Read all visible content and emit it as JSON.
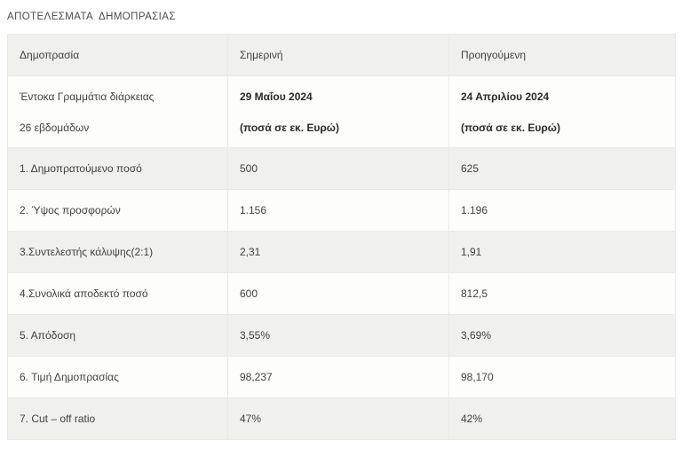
{
  "page": {
    "title": "ΑΠΟΤΕΛΕΣΜΑΤΑ  ΔΗΜΟΠΡΑΣΙΑΣ"
  },
  "table": {
    "columns": [
      "Δημοπρασία",
      "Σημερινή",
      "Προηγούμενη"
    ],
    "instrument_row": {
      "label_line1": "Έντοκα Γραμμάτια διάρκειας",
      "label_line2": "26 εβδομάδων",
      "current_line1": "29 Μαΐου 2024",
      "current_line2": "(ποσά σε εκ. Ευρώ)",
      "previous_line1": "24 Απριλίου 2024",
      "previous_line2": "(ποσά σε εκ. Ευρώ)"
    },
    "rows": [
      {
        "label": "1. Δημοπρατούμενο ποσό",
        "current": "500",
        "previous": "625"
      },
      {
        "label": "2. Ύψος προσφορών",
        "current": "1.156",
        "previous": "1.196"
      },
      {
        "label": "3.Συντελεστής κάλυψης(2:1)",
        "current": "2,31",
        "previous": "1,91"
      },
      {
        "label": "4.Συνολικά αποδεκτό ποσό",
        "current": "600",
        "previous": "812,5"
      },
      {
        "label": "5. Απόδοση",
        "current": "3,55%",
        "previous": "3,69%"
      },
      {
        "label": "6. Τιμή Δημοπρασίας",
        "current": "98,237",
        "previous": "98,170"
      },
      {
        "label": "7. Cut – off ratio",
        "current": "47%",
        "previous": "42%"
      }
    ],
    "colors": {
      "stripe_bg": "#f0f0ee",
      "white_bg": "#fdfdfc",
      "border": "#e9e9e7",
      "text": "#424242",
      "bold_text": "#2a2a2a",
      "title_text": "#4b4b4b"
    }
  }
}
